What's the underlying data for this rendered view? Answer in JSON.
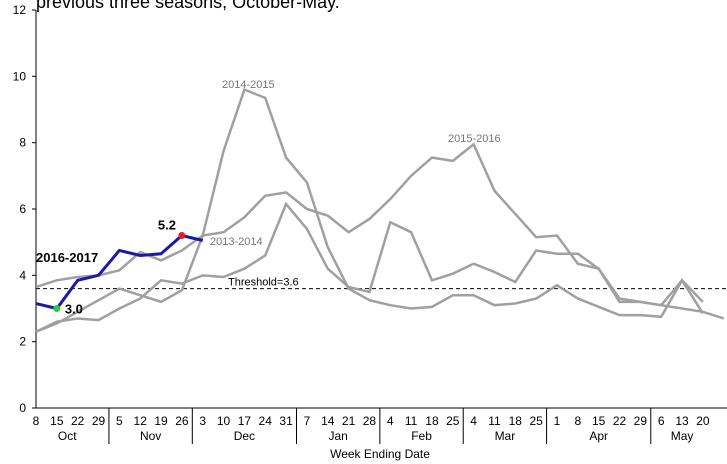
{
  "chart_data": {
    "type": "line",
    "title": "previous three seasons, October-May.",
    "x_label": "Week Ending Date",
    "categories": [
      "8",
      "15",
      "22",
      "29",
      "5",
      "12",
      "19",
      "26",
      "3",
      "10",
      "17",
      "24",
      "31",
      "7",
      "14",
      "21",
      "28",
      "4",
      "11",
      "18",
      "25",
      "4",
      "11",
      "18",
      "25",
      "1",
      "8",
      "15",
      "22",
      "29",
      "6",
      "13",
      "20",
      null
    ],
    "months": [
      {
        "label": "Oct",
        "weeks": 4
      },
      {
        "label": "Nov",
        "weeks": 4
      },
      {
        "label": "Dec",
        "weeks": 5
      },
      {
        "label": "Jan",
        "weeks": 4
      },
      {
        "label": "Feb",
        "weeks": 4
      },
      {
        "label": "Mar",
        "weeks": 4
      },
      {
        "label": "Apr",
        "weeks": 5
      },
      {
        "label": "May",
        "weeks": 3
      }
    ],
    "ylim": [
      0,
      12
    ],
    "yticks": [
      0,
      2,
      4,
      6,
      8,
      10,
      12
    ],
    "threshold": {
      "value": 3.6,
      "label": "Threshold=3.6"
    },
    "series": [
      {
        "name": "2013-2014",
        "color": "#a0a0a0",
        "values": [
          2.3,
          2.6,
          2.7,
          2.65,
          3.0,
          3.3,
          3.85,
          3.75,
          4.0,
          3.95,
          4.2,
          4.6,
          6.15,
          5.4,
          4.2,
          3.65,
          3.5,
          5.6,
          5.3,
          3.85,
          4.05,
          4.35,
          4.1,
          3.8,
          4.75,
          4.65,
          4.65,
          4.2,
          3.2,
          3.2,
          3.1,
          3.85,
          3.2,
          null
        ]
      },
      {
        "name": "2014-2015",
        "color": "#a0a0a0",
        "values": [
          2.3,
          2.55,
          2.9,
          3.25,
          3.6,
          3.4,
          3.2,
          3.55,
          5.2,
          7.75,
          9.6,
          9.35,
          7.55,
          6.8,
          4.85,
          3.6,
          3.25,
          3.1,
          3.0,
          3.05,
          3.4,
          3.4,
          3.1,
          3.15,
          3.3,
          3.7,
          3.3,
          3.05,
          2.8,
          2.8,
          2.75,
          3.85,
          2.85,
          null
        ]
      },
      {
        "name": "2015-2016",
        "color": "#a0a0a0",
        "values": [
          3.65,
          3.85,
          3.95,
          4.0,
          4.15,
          4.7,
          4.45,
          4.75,
          5.2,
          5.3,
          5.75,
          6.4,
          6.5,
          6.0,
          5.8,
          5.3,
          5.7,
          6.3,
          7.0,
          7.55,
          7.45,
          7.95,
          6.55,
          5.85,
          5.15,
          5.2,
          4.35,
          4.2,
          3.3,
          3.2,
          3.1,
          3.0,
          2.9,
          2.7
        ]
      },
      {
        "name": "2016-2017",
        "color": "#1a1aaa",
        "values": [
          3.15,
          3.0,
          3.85,
          4.0,
          4.75,
          4.6,
          4.65,
          5.2,
          5.05,
          null,
          null,
          null,
          null,
          null,
          null,
          null,
          null,
          null,
          null,
          null,
          null,
          null,
          null,
          null,
          null,
          null,
          null,
          null,
          null,
          null,
          null,
          null,
          null,
          null
        ],
        "value_labels": [
          null,
          "3.0",
          null,
          null,
          null,
          null,
          null,
          "5.2",
          null,
          null,
          null,
          null,
          null,
          null,
          null,
          null,
          null,
          null,
          null,
          null,
          null,
          null,
          null,
          null,
          null,
          null,
          null,
          null,
          null,
          null,
          null,
          null,
          null,
          null
        ],
        "marker_colors": [
          null,
          "#2ecc40",
          null,
          null,
          null,
          null,
          null,
          "#e02020",
          null,
          null,
          null,
          null,
          null,
          null,
          null,
          null,
          null,
          null,
          null,
          null,
          null,
          null,
          null,
          null,
          null,
          null,
          null,
          null,
          null,
          null,
          null,
          null,
          null,
          null
        ]
      }
    ]
  }
}
